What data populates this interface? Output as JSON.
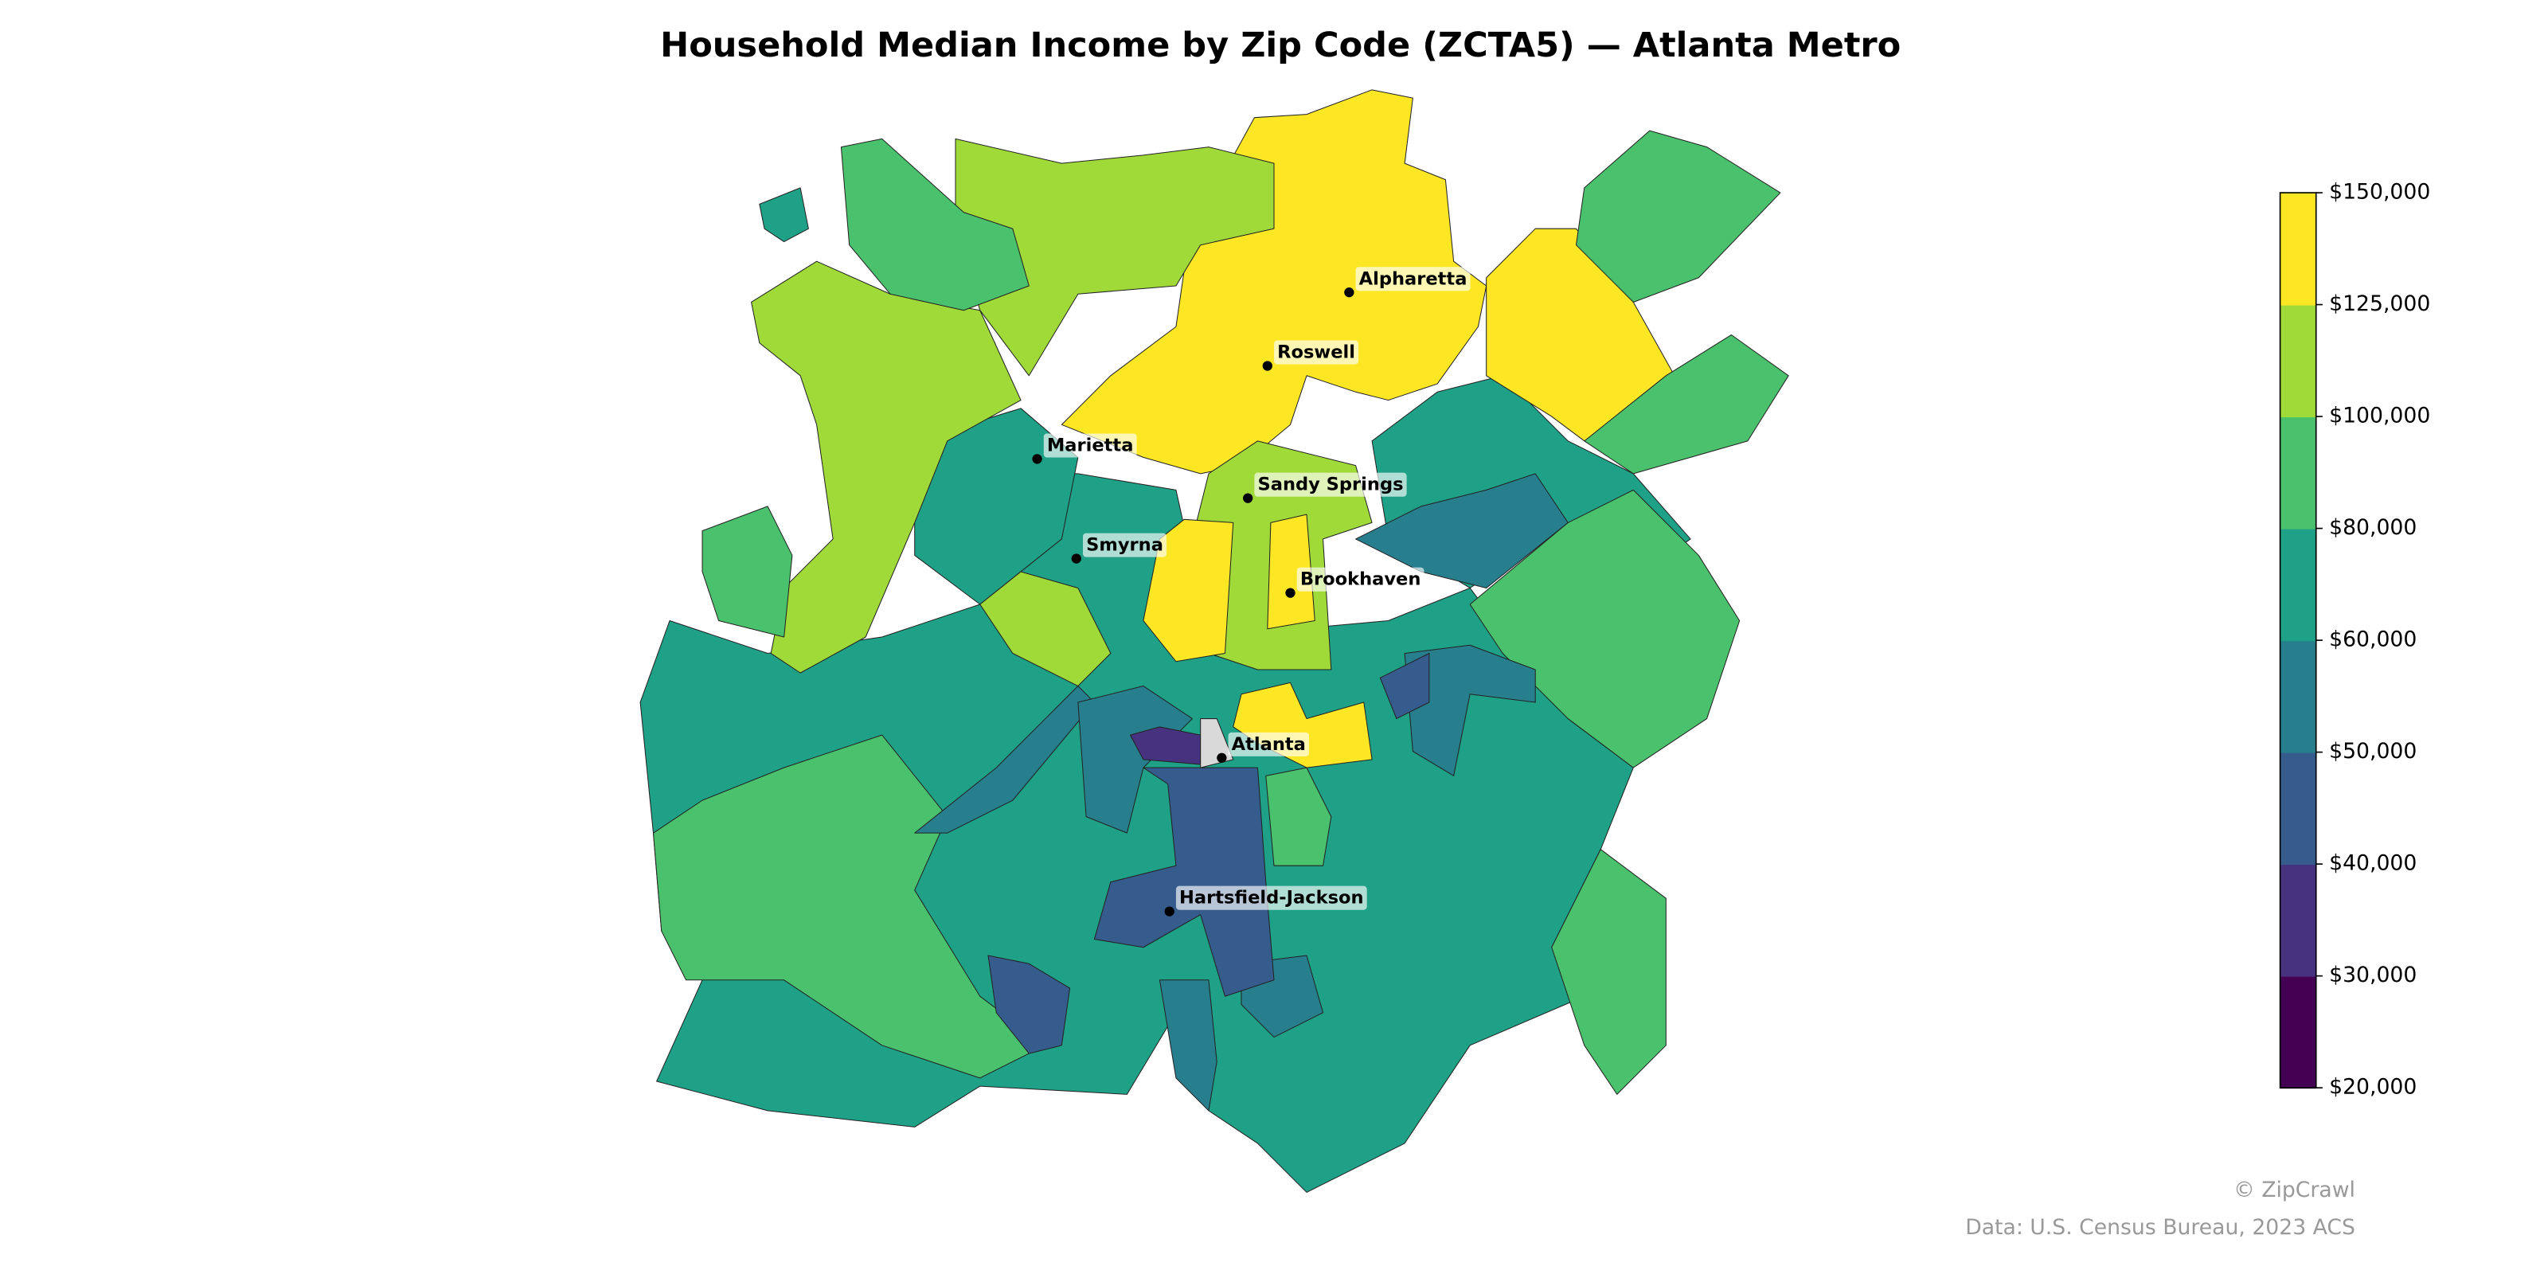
{
  "title": "Household Median Income by Zip Code (ZCTA5) — Atlanta Metro",
  "cities": [
    "Alpharetta",
    "Roswell",
    "Marietta",
    "Sandy Springs",
    "Smyrna",
    "Brookhaven",
    "Atlanta",
    "Hartsfield-Jackson"
  ],
  "colorbar": {
    "ticks": [
      {
        "value": 20000,
        "label": "$20,000"
      },
      {
        "value": 30000,
        "label": "$30,000"
      },
      {
        "value": 40000,
        "label": "$40,000"
      },
      {
        "value": 50000,
        "label": "$50,000"
      },
      {
        "value": 60000,
        "label": "$60,000"
      },
      {
        "value": 80000,
        "label": "$80,000"
      },
      {
        "value": 100000,
        "label": "$100,000"
      },
      {
        "value": 125000,
        "label": "$125,000"
      },
      {
        "value": 150000,
        "label": "$150,000"
      }
    ],
    "colors": [
      "#440154",
      "#46327e",
      "#365c8d",
      "#277f8e",
      "#1fa187",
      "#4ac16d",
      "#a0da39",
      "#fde725"
    ],
    "no_data_color": "#d9d9d9"
  },
  "footer": {
    "copyright": "© ZipCrawl",
    "source": "Data: U.S. Census Bureau, 2023 ACS"
  }
}
